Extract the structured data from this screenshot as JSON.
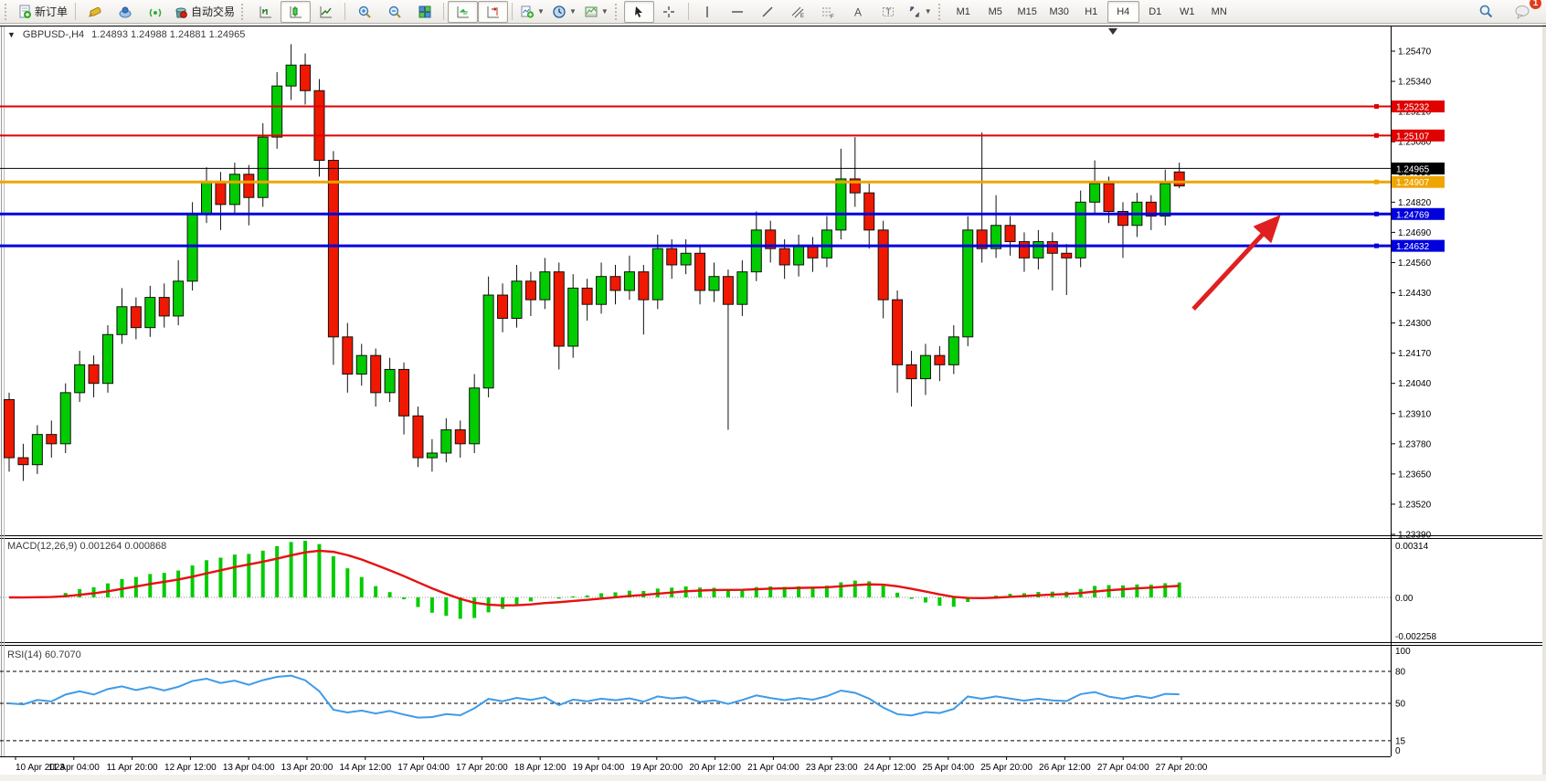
{
  "toolbar": {
    "new_order_label": "新订单",
    "autotrading_label": "自动交易",
    "timeframes": [
      "M1",
      "M5",
      "M15",
      "M30",
      "H1",
      "H4",
      "D1",
      "W1",
      "MN"
    ],
    "active_timeframe": "H4",
    "notification_badge": "1"
  },
  "chart": {
    "symbol_title": "GBPUSD-,H4",
    "ohlc_readout": "1.24893 1.24988 1.24881 1.24965",
    "macd_label": "MACD(12,26,9) 0.001264 0.000868",
    "rsi_label": "RSI(14) 60.7070"
  },
  "chart_data": {
    "type": "candlestick",
    "symbol": "GBPUSD-",
    "period": "H4",
    "current_bar": {
      "open": 1.24893,
      "high": 1.24988,
      "low": 1.24881,
      "close": 1.24965
    },
    "price_ticks": [
      "1.25470",
      "1.25340",
      "1.25210",
      "1.25080",
      "1.24950",
      "1.24820",
      "1.24690",
      "1.24560",
      "1.24430",
      "1.24300",
      "1.24170",
      "1.24040",
      "1.23910",
      "1.23780",
      "1.23650",
      "1.23520",
      "1.23390"
    ],
    "time_labels": [
      "10 Apr 2023",
      "11 Apr 04:00",
      "11 Apr 20:00",
      "12 Apr 12:00",
      "13 Apr 04:00",
      "13 Apr 20:00",
      "14 Apr 12:00",
      "17 Apr 04:00",
      "17 Apr 20:00",
      "18 Apr 12:00",
      "19 Apr 04:00",
      "19 Apr 20:00",
      "20 Apr 12:00",
      "21 Apr 04:00",
      "23 Apr 23:00",
      "24 Apr 12:00",
      "25 Apr 04:00",
      "25 Apr 20:00",
      "26 Apr 12:00",
      "27 Apr 04:00",
      "27 Apr 20:00"
    ],
    "up_color": "#00cc00",
    "down_color": "#f01800",
    "candles": [
      [
        1.2397,
        1.24,
        1.2366,
        1.2372
      ],
      [
        1.2372,
        1.2378,
        1.2362,
        1.2369
      ],
      [
        1.2369,
        1.2386,
        1.2365,
        1.2382
      ],
      [
        1.2382,
        1.2388,
        1.2372,
        1.2378
      ],
      [
        1.2378,
        1.2404,
        1.2374,
        1.24
      ],
      [
        1.24,
        1.2418,
        1.2396,
        1.2412
      ],
      [
        1.2412,
        1.2416,
        1.2398,
        1.2404
      ],
      [
        1.2404,
        1.2429,
        1.24,
        1.2425
      ],
      [
        1.2425,
        1.2445,
        1.2421,
        1.2437
      ],
      [
        1.2437,
        1.2441,
        1.2423,
        1.2428
      ],
      [
        1.2428,
        1.2446,
        1.2424,
        1.2441
      ],
      [
        1.2441,
        1.2447,
        1.2428,
        1.2433
      ],
      [
        1.2433,
        1.2457,
        1.2429,
        1.2448
      ],
      [
        1.2448,
        1.2482,
        1.2444,
        1.2477
      ],
      [
        1.2477,
        1.2497,
        1.2473,
        1.2491
      ],
      [
        1.2491,
        1.2495,
        1.247,
        1.2481
      ],
      [
        1.2481,
        1.2499,
        1.2477,
        1.2494
      ],
      [
        1.2494,
        1.2498,
        1.2472,
        1.2484
      ],
      [
        1.2484,
        1.2516,
        1.248,
        1.251
      ],
      [
        1.251,
        1.2538,
        1.2505,
        1.2532
      ],
      [
        1.2532,
        1.255,
        1.2526,
        1.2541
      ],
      [
        1.2541,
        1.2546,
        1.2524,
        1.253
      ],
      [
        1.253,
        1.2535,
        1.2493,
        1.25
      ],
      [
        1.25,
        1.2504,
        1.2412,
        1.2424
      ],
      [
        1.2424,
        1.243,
        1.24,
        1.2408
      ],
      [
        1.2408,
        1.2421,
        1.2403,
        1.2416
      ],
      [
        1.2416,
        1.2419,
        1.2394,
        1.24
      ],
      [
        1.24,
        1.2415,
        1.2396,
        1.241
      ],
      [
        1.241,
        1.2413,
        1.2382,
        1.239
      ],
      [
        1.239,
        1.2394,
        1.2368,
        1.2372
      ],
      [
        1.2372,
        1.238,
        1.2366,
        1.2374
      ],
      [
        1.2374,
        1.2389,
        1.237,
        1.2384
      ],
      [
        1.2384,
        1.2388,
        1.2372,
        1.2378
      ],
      [
        1.2378,
        1.2408,
        1.2374,
        1.2402
      ],
      [
        1.2402,
        1.245,
        1.2398,
        1.2442
      ],
      [
        1.2442,
        1.2447,
        1.2426,
        1.2432
      ],
      [
        1.2432,
        1.2455,
        1.2428,
        1.2448
      ],
      [
        1.2448,
        1.2452,
        1.2433,
        1.244
      ],
      [
        1.244,
        1.2458,
        1.2436,
        1.2452
      ],
      [
        1.2452,
        1.2456,
        1.241,
        1.242
      ],
      [
        1.242,
        1.2451,
        1.2415,
        1.2445
      ],
      [
        1.2445,
        1.2449,
        1.2431,
        1.2438
      ],
      [
        1.2438,
        1.2456,
        1.2434,
        1.245
      ],
      [
        1.245,
        1.2455,
        1.2438,
        1.2444
      ],
      [
        1.2444,
        1.2459,
        1.244,
        1.2452
      ],
      [
        1.2452,
        1.2455,
        1.2425,
        1.244
      ],
      [
        1.244,
        1.2468,
        1.2436,
        1.2462
      ],
      [
        1.2462,
        1.2466,
        1.2449,
        1.2455
      ],
      [
        1.2455,
        1.2466,
        1.2451,
        1.246
      ],
      [
        1.246,
        1.2463,
        1.2438,
        1.2444
      ],
      [
        1.2444,
        1.2456,
        1.2439,
        1.245
      ],
      [
        1.245,
        1.2453,
        1.2384,
        1.2438
      ],
      [
        1.2438,
        1.2457,
        1.2433,
        1.2452
      ],
      [
        1.2452,
        1.2478,
        1.2448,
        1.247
      ],
      [
        1.247,
        1.2474,
        1.2456,
        1.2462
      ],
      [
        1.2462,
        1.2466,
        1.2449,
        1.2455
      ],
      [
        1.2455,
        1.2468,
        1.245,
        1.2463
      ],
      [
        1.2463,
        1.2467,
        1.2452,
        1.2458
      ],
      [
        1.2458,
        1.2476,
        1.2454,
        1.247
      ],
      [
        1.247,
        1.2505,
        1.2466,
        1.2492
      ],
      [
        1.2492,
        1.251,
        1.248,
        1.2486
      ],
      [
        1.2486,
        1.249,
        1.2462,
        1.247
      ],
      [
        1.247,
        1.2474,
        1.2432,
        1.244
      ],
      [
        1.244,
        1.2444,
        1.24,
        1.2412
      ],
      [
        1.2412,
        1.2418,
        1.2394,
        1.2406
      ],
      [
        1.2406,
        1.2421,
        1.2399,
        1.2416
      ],
      [
        1.2416,
        1.242,
        1.2405,
        1.2412
      ],
      [
        1.2412,
        1.2429,
        1.2408,
        1.2424
      ],
      [
        1.2424,
        1.2476,
        1.242,
        1.247
      ],
      [
        1.247,
        1.2512,
        1.2456,
        1.2462
      ],
      [
        1.2462,
        1.2485,
        1.2458,
        1.2472
      ],
      [
        1.2472,
        1.2476,
        1.2459,
        1.2465
      ],
      [
        1.2465,
        1.2469,
        1.2452,
        1.2458
      ],
      [
        1.2458,
        1.247,
        1.2453,
        1.2465
      ],
      [
        1.2465,
        1.2469,
        1.2444,
        1.246
      ],
      [
        1.246,
        1.2464,
        1.2442,
        1.2458
      ],
      [
        1.2458,
        1.2487,
        1.2454,
        1.2482
      ],
      [
        1.2482,
        1.25,
        1.2477,
        1.249
      ],
      [
        1.249,
        1.2493,
        1.2473,
        1.2478
      ],
      [
        1.2478,
        1.2482,
        1.2458,
        1.2472
      ],
      [
        1.2472,
        1.2486,
        1.2467,
        1.2482
      ],
      [
        1.2482,
        1.2485,
        1.247,
        1.2476
      ],
      [
        1.2476,
        1.2496,
        1.2472,
        1.249
      ],
      [
        1.2495,
        1.2499,
        1.2488,
        1.2489
      ]
    ],
    "hlines": [
      {
        "price": 1.25232,
        "label": "1.25232",
        "color": "#e00000",
        "width": 2
      },
      {
        "price": 1.25107,
        "label": "1.25107",
        "color": "#e00000",
        "width": 2
      },
      {
        "price": 1.24907,
        "label": "1.24907",
        "color": "#efa500",
        "width": 3
      },
      {
        "price": 1.24769,
        "label": "1.24769",
        "color": "#0000dd",
        "width": 3
      },
      {
        "price": 1.24632,
        "label": "1.24632",
        "color": "#0000dd",
        "width": 3
      }
    ],
    "bid_line": {
      "price": 1.24965,
      "label": "1.24965",
      "color": "#000000"
    },
    "macd": {
      "params": "12,26,9",
      "value": "0.001264",
      "signal_value": "0.000868",
      "axis_labels": [
        "0.00314",
        "0.00",
        "-0.002258"
      ],
      "histogram_color": "#00cc00",
      "signal_color": "#e81010"
    },
    "rsi": {
      "params": "14",
      "value": "60.7070",
      "axis_labels": [
        "100",
        "80",
        "50",
        "15",
        "0"
      ],
      "levels": [
        80,
        50,
        15
      ],
      "line_color": "#3e9be8"
    },
    "annotations": {
      "arrow": {
        "from_bar": 84.0,
        "from_price": 1.2436,
        "to_bar": 89.8,
        "to_price": 1.2474,
        "color": "#e02020"
      }
    }
  }
}
